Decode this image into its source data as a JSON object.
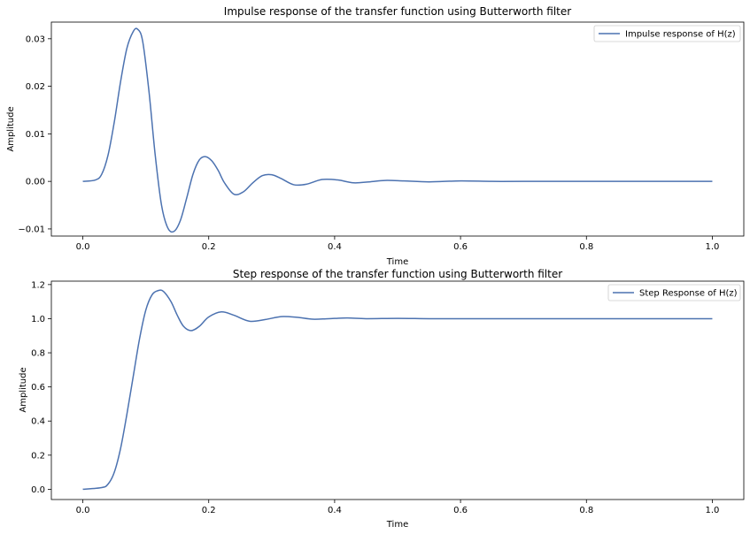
{
  "chart_data": [
    {
      "type": "line",
      "title": "Impulse response of the transfer function using Butterworth filter",
      "xlabel": "Time",
      "ylabel": "Amplitude",
      "xlim": [
        -0.05,
        1.05
      ],
      "ylim": [
        -0.0115,
        0.0335
      ],
      "xticks": [
        0.0,
        0.2,
        0.4,
        0.6,
        0.8,
        1.0
      ],
      "xtick_labels": [
        "0.0",
        "0.2",
        "0.4",
        "0.6",
        "0.8",
        "1.0"
      ],
      "yticks": [
        -0.01,
        0.0,
        0.01,
        0.02,
        0.03
      ],
      "ytick_labels": [
        "−0.01",
        "0.00",
        "0.01",
        "0.02",
        "0.03"
      ],
      "grid": false,
      "legend": "top-right",
      "color": "#4c72b0",
      "series": [
        {
          "name": "Impulse response of H(z)",
          "x": [
            0.0,
            0.02,
            0.03,
            0.04,
            0.05,
            0.06,
            0.07,
            0.08,
            0.087,
            0.095,
            0.105,
            0.115,
            0.125,
            0.135,
            0.145,
            0.155,
            0.165,
            0.175,
            0.185,
            0.195,
            0.205,
            0.215,
            0.225,
            0.24,
            0.255,
            0.27,
            0.285,
            0.3,
            0.315,
            0.335,
            0.355,
            0.38,
            0.405,
            0.43,
            0.455,
            0.48,
            0.51,
            0.55,
            0.6,
            0.65,
            0.7,
            0.8,
            0.9,
            1.0
          ],
          "y": [
            0.0,
            0.0003,
            0.0015,
            0.0055,
            0.0125,
            0.021,
            0.028,
            0.0315,
            0.032,
            0.0295,
            0.019,
            0.0055,
            -0.005,
            -0.0098,
            -0.0105,
            -0.0082,
            -0.0035,
            0.0015,
            0.0045,
            0.0052,
            0.0043,
            0.0023,
            -0.0003,
            -0.0027,
            -0.0022,
            -0.0003,
            0.0012,
            0.0014,
            0.0006,
            -0.0007,
            -0.0006,
            0.0004,
            0.0003,
            -0.0003,
            -0.0001,
            0.0002,
            0.0001,
            -0.0001,
            0.0001,
            0.0,
            0.0,
            0.0,
            0.0,
            0.0
          ]
        }
      ]
    },
    {
      "type": "line",
      "title": "Step response of the transfer function using Butterworth filter",
      "xlabel": "Time",
      "ylabel": "Amplitude",
      "xlim": [
        -0.05,
        1.05
      ],
      "ylim": [
        -0.06,
        1.22
      ],
      "xticks": [
        0.0,
        0.2,
        0.4,
        0.6,
        0.8,
        1.0
      ],
      "xtick_labels": [
        "0.0",
        "0.2",
        "0.4",
        "0.6",
        "0.8",
        "1.0"
      ],
      "yticks": [
        0.0,
        0.2,
        0.4,
        0.6,
        0.8,
        1.0,
        1.2
      ],
      "ytick_labels": [
        "0.0",
        "0.2",
        "0.4",
        "0.6",
        "0.8",
        "1.0",
        "1.2"
      ],
      "grid": false,
      "legend": "top-right",
      "color": "#4c72b0",
      "series": [
        {
          "name": "Step Response of H(z)",
          "x": [
            0.0,
            0.03,
            0.04,
            0.05,
            0.06,
            0.07,
            0.08,
            0.09,
            0.1,
            0.11,
            0.12,
            0.128,
            0.14,
            0.15,
            0.16,
            0.172,
            0.185,
            0.2,
            0.22,
            0.24,
            0.265,
            0.29,
            0.315,
            0.34,
            0.365,
            0.39,
            0.42,
            0.45,
            0.5,
            0.55,
            0.6,
            0.7,
            0.8,
            0.9,
            1.0
          ],
          "y": [
            0.0,
            0.01,
            0.03,
            0.1,
            0.24,
            0.44,
            0.66,
            0.88,
            1.05,
            1.14,
            1.165,
            1.16,
            1.1,
            1.02,
            0.955,
            0.93,
            0.955,
            1.01,
            1.04,
            1.02,
            0.985,
            0.995,
            1.012,
            1.008,
            0.997,
            1.0,
            1.004,
            1.0,
            1.002,
            1.0,
            1.0,
            1.0,
            1.0,
            1.0,
            1.0
          ]
        }
      ]
    }
  ]
}
